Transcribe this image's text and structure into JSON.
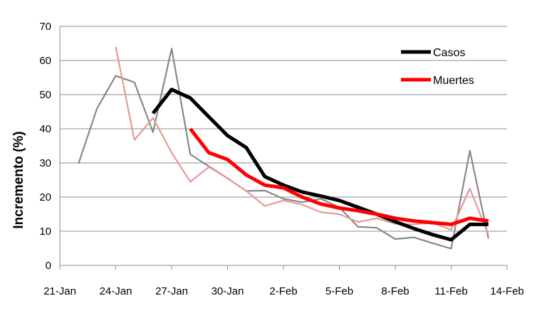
{
  "chart_data": {
    "type": "line",
    "ylabel": "Incremento (%)",
    "xlabel": "",
    "x_tick_labels": [
      "21-Jan",
      "24-Jan",
      "27-Jan",
      "30-Jan",
      "2-Feb",
      "5-Feb",
      "8-Feb",
      "11-Feb",
      "14-Feb"
    ],
    "x_tick_positions": [
      0,
      3,
      6,
      9,
      12,
      15,
      18,
      21,
      24
    ],
    "xlim": [
      0,
      24
    ],
    "ylim": [
      0,
      70
    ],
    "y_ticks": [
      0,
      10,
      20,
      30,
      40,
      50,
      60,
      70
    ],
    "grid": "horizontal",
    "legend_position": "top-right",
    "series": [
      {
        "name": "Casos",
        "color": "#000000",
        "style": "thick",
        "legend": true,
        "points": [
          [
            5,
            44.5
          ],
          [
            6,
            51.5
          ],
          [
            7,
            49
          ],
          [
            8,
            43.5
          ],
          [
            9,
            38
          ],
          [
            10,
            34.5
          ],
          [
            11,
            26
          ],
          [
            12,
            23.5
          ],
          [
            13,
            21.5
          ],
          [
            14,
            20.3
          ],
          [
            15,
            19
          ],
          [
            16,
            17
          ],
          [
            17,
            15
          ],
          [
            18,
            12.8
          ],
          [
            19,
            10.8
          ],
          [
            20,
            9
          ],
          [
            21,
            7.5
          ],
          [
            22,
            12
          ],
          [
            23,
            12
          ]
        ]
      },
      {
        "name": "Muertes",
        "color": "#ff0000",
        "style": "thick",
        "legend": true,
        "points": [
          [
            7,
            40
          ],
          [
            8,
            33
          ],
          [
            9,
            31
          ],
          [
            10,
            26.5
          ],
          [
            11,
            23.5
          ],
          [
            12,
            22.7
          ],
          [
            13,
            20
          ],
          [
            14,
            18
          ],
          [
            15,
            16.8
          ],
          [
            16,
            16
          ],
          [
            17,
            15
          ],
          [
            18,
            13.8
          ],
          [
            19,
            13
          ],
          [
            20,
            12.5
          ],
          [
            21,
            12
          ],
          [
            22,
            13.8
          ],
          [
            23,
            13
          ]
        ]
      },
      {
        "color": "#888888",
        "style": "thin",
        "legend": false,
        "points": [
          [
            1,
            29.8
          ],
          [
            2,
            46
          ],
          [
            3,
            55.5
          ],
          [
            4,
            53.6
          ],
          [
            5,
            39
          ],
          [
            6,
            63.5
          ],
          [
            7,
            32.5
          ],
          [
            8,
            29
          ],
          [
            9,
            25.5
          ],
          [
            10,
            21.8
          ],
          [
            11,
            21.9
          ],
          [
            12,
            19.5
          ],
          [
            13,
            18.5
          ],
          [
            14,
            19.5
          ],
          [
            15,
            17
          ],
          [
            16,
            11.3
          ],
          [
            17,
            11
          ],
          [
            18,
            7.7
          ],
          [
            19,
            8.2
          ],
          [
            20,
            6.5
          ],
          [
            21,
            4.9
          ],
          [
            22,
            33.6
          ],
          [
            23,
            7.9
          ]
        ]
      },
      {
        "color": "#e59a95",
        "style": "thin",
        "legend": false,
        "points": [
          [
            3,
            64
          ],
          [
            4,
            36.7
          ],
          [
            5,
            43.2
          ],
          [
            6,
            33
          ],
          [
            7,
            24.5
          ],
          [
            8,
            28.8
          ],
          [
            9,
            25.5
          ],
          [
            10,
            21.8
          ],
          [
            11,
            17.4
          ],
          [
            12,
            19
          ],
          [
            13,
            17.8
          ],
          [
            14,
            15.6
          ],
          [
            15,
            15
          ],
          [
            16,
            12.7
          ],
          [
            17,
            13.8
          ],
          [
            18,
            12.2
          ],
          [
            19,
            12
          ],
          [
            20,
            12.5
          ],
          [
            21,
            10.4
          ],
          [
            22,
            22.5
          ],
          [
            23,
            9
          ]
        ]
      }
    ]
  }
}
